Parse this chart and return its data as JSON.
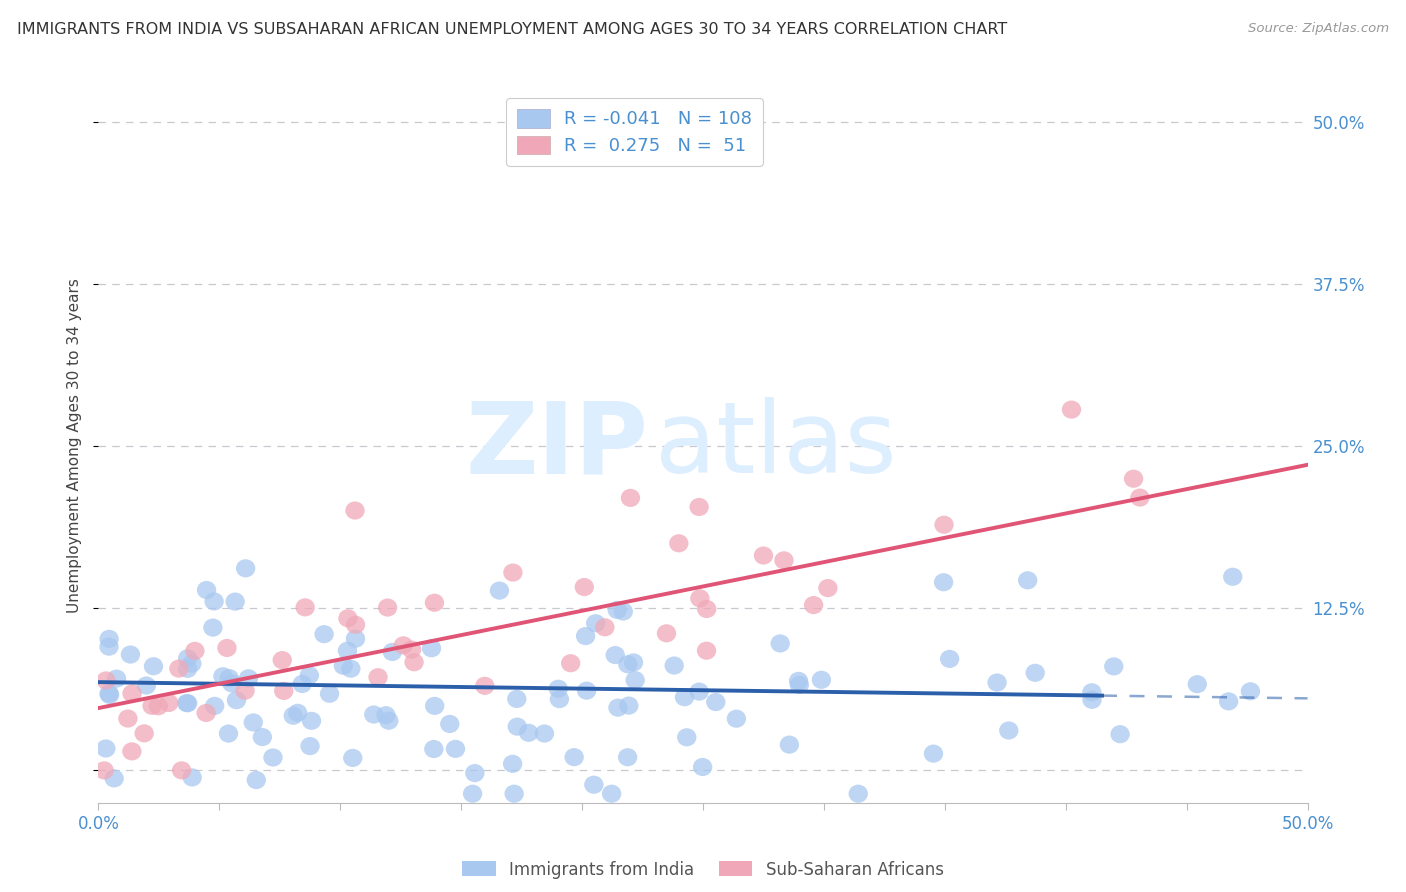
{
  "title": "IMMIGRANTS FROM INDIA VS SUBSAHARAN AFRICAN UNEMPLOYMENT AMONG AGES 30 TO 34 YEARS CORRELATION CHART",
  "source": "Source: ZipAtlas.com",
  "ylabel": "Unemployment Among Ages 30 to 34 years",
  "xlim": [
    0.0,
    0.5
  ],
  "ylim": [
    -0.025,
    0.525
  ],
  "ytick_positions": [
    0.0,
    0.125,
    0.25,
    0.375,
    0.5
  ],
  "ytick_labels": [
    "",
    "12.5%",
    "25.0%",
    "37.5%",
    "50.0%"
  ],
  "india_R": -0.041,
  "india_N": 108,
  "africa_R": 0.275,
  "africa_N": 51,
  "india_color": "#a8c8f0",
  "africa_color": "#f0a8b8",
  "india_line_color": "#2b5faa",
  "africa_line_color": "#e05575",
  "legend_india_label": "Immigrants from India",
  "legend_africa_label": "Sub-Saharan Africans",
  "watermark_zip": "ZIP",
  "watermark_atlas": "atlas",
  "background_color": "#ffffff",
  "grid_color": "#c8c8d0",
  "title_color": "#333333",
  "axis_label_color": "#555555",
  "tick_label_color": "#4a90d0",
  "india_line_solid_end": 0.415,
  "africa_line_intercept": 0.048,
  "africa_line_slope": 0.375,
  "india_line_intercept": 0.068,
  "india_line_slope": -0.025
}
